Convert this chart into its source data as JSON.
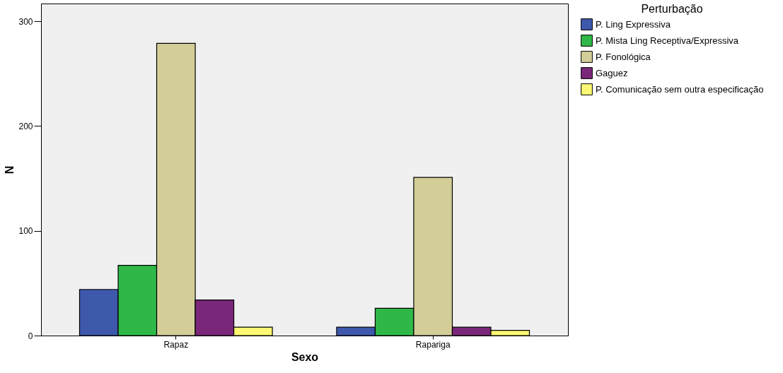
{
  "chart_data": {
    "type": "bar",
    "xlabel": "Sexo",
    "ylabel": "N",
    "legend_title": "Perturbação",
    "categories": [
      "Rapaz",
      "Rapariga"
    ],
    "series": [
      {
        "name": "P. Ling Expressiva",
        "color": "#3e58ac",
        "values": [
          44,
          8
        ]
      },
      {
        "name": "P. Mista Ling Receptiva/Expressiva",
        "color": "#2fb847",
        "values": [
          67,
          26
        ]
      },
      {
        "name": "P. Fonológica",
        "color": "#d3ce98",
        "values": [
          279,
          151
        ]
      },
      {
        "name": "Gaguez",
        "color": "#7b2779",
        "values": [
          34,
          8
        ]
      },
      {
        "name": "P. Comunicação sem outra especificação",
        "color": "#fbf873",
        "values": [
          8,
          5
        ]
      }
    ],
    "ylim": [
      0,
      317
    ],
    "yticks": [
      0,
      100,
      200,
      300
    ],
    "grid": false,
    "legend": "right"
  }
}
